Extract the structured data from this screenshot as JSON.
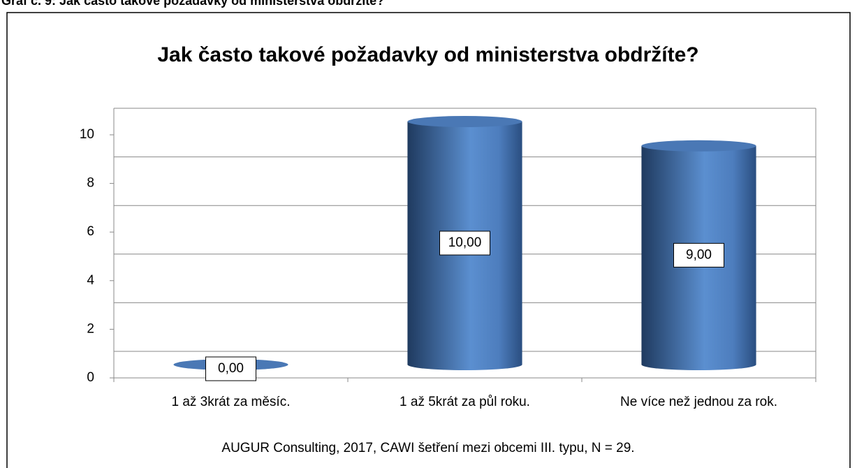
{
  "caption": "Graf č. 9: Jak často takové požadavky od ministerstva obdržíte?",
  "chart_data": {
    "type": "bar3d",
    "title": "Jak často takové požadavky od ministerstva obdržíte?",
    "categories": [
      "1 až 3krát za měsíc.",
      "1 až 5krát za půl roku.",
      "Ne více než jednou za rok."
    ],
    "values": [
      0,
      10,
      9
    ],
    "value_labels": [
      "0,00",
      "10,00",
      "9,00"
    ],
    "color": "#4f81bd",
    "ylim": [
      0,
      10
    ],
    "yticks": [
      0,
      2,
      4,
      6,
      8,
      10
    ],
    "grid": true
  },
  "source": "AUGUR Consulting, 2017, CAWI šetření mezi obcemi III. typu, N = 29."
}
